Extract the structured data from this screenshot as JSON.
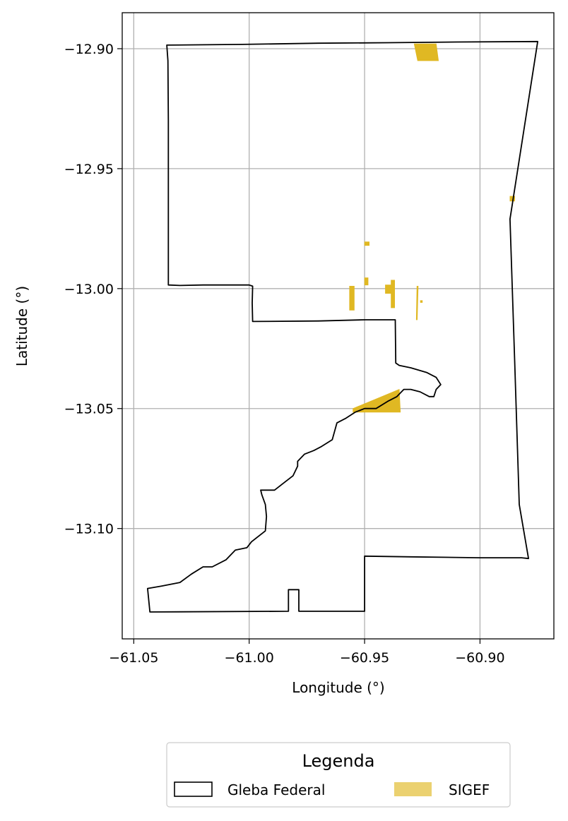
{
  "chart_data": {
    "type": "map",
    "xlabel": "Longitude (°)",
    "ylabel": "Latitude (°)",
    "xlim": [
      -61.055,
      -60.868
    ],
    "ylim": [
      -13.146,
      -12.885
    ],
    "xticks": [
      -61.05,
      -61.0,
      -60.95,
      -60.9
    ],
    "xtick_labels": [
      "−61.05",
      "−61.00",
      "−60.95",
      "−60.90"
    ],
    "yticks": [
      -12.9,
      -12.95,
      -13.0,
      -13.05,
      -13.1
    ],
    "ytick_labels": [
      "−12.90",
      "−12.95",
      "−13.00",
      "−13.05",
      "−13.10"
    ],
    "grid": true,
    "colors": {
      "gleba_edge": "#000000",
      "sigef_fill": "#e0b823",
      "grid": "#b0b0b0"
    },
    "gleba_federal": [
      [
        -61.0357,
        -12.8985
      ],
      [
        -61.003,
        -12.8982
      ],
      [
        -60.97,
        -12.8977
      ],
      [
        -60.94,
        -12.8975
      ],
      [
        -60.91,
        -12.8972
      ],
      [
        -60.875,
        -12.897
      ],
      [
        -60.887,
        -12.971
      ],
      [
        -60.885,
        -13.03
      ],
      [
        -60.883,
        -13.09
      ],
      [
        -60.879,
        -13.1125
      ],
      [
        -60.882,
        -13.1122
      ],
      [
        -60.9,
        -13.1122
      ],
      [
        -60.93,
        -13.1118
      ],
      [
        -60.95,
        -13.1115
      ],
      [
        -60.95,
        -13.1345
      ],
      [
        -60.9785,
        -13.1345
      ],
      [
        -60.9785,
        -13.1255
      ],
      [
        -60.983,
        -13.1255
      ],
      [
        -60.983,
        -13.1345
      ],
      [
        -61.043,
        -13.1348
      ],
      [
        -61.044,
        -13.125
      ],
      [
        -61.038,
        -13.124
      ],
      [
        -61.03,
        -13.1225
      ],
      [
        -61.025,
        -13.119
      ],
      [
        -61.02,
        -13.116
      ],
      [
        -61.016,
        -13.116
      ],
      [
        -61.01,
        -13.113
      ],
      [
        -61.006,
        -13.109
      ],
      [
        -61.001,
        -13.108
      ],
      [
        -60.999,
        -13.1055
      ],
      [
        -60.993,
        -13.101
      ],
      [
        -60.9925,
        -13.095
      ],
      [
        -60.993,
        -13.09
      ],
      [
        -60.9945,
        -13.086
      ],
      [
        -60.995,
        -13.084
      ],
      [
        -60.989,
        -13.084
      ],
      [
        -60.985,
        -13.081
      ],
      [
        -60.981,
        -13.078
      ],
      [
        -60.979,
        -13.074
      ],
      [
        -60.979,
        -13.072
      ],
      [
        -60.976,
        -13.069
      ],
      [
        -60.972,
        -13.0675
      ],
      [
        -60.969,
        -13.066
      ],
      [
        -60.964,
        -13.063
      ],
      [
        -60.962,
        -13.056
      ],
      [
        -60.958,
        -13.054
      ],
      [
        -60.954,
        -13.0515
      ],
      [
        -60.95,
        -13.05
      ],
      [
        -60.945,
        -13.05
      ],
      [
        -60.94,
        -13.047
      ],
      [
        -60.936,
        -13.045
      ],
      [
        -60.933,
        -13.042
      ],
      [
        -60.93,
        -13.042
      ],
      [
        -60.926,
        -13.043
      ],
      [
        -60.922,
        -13.045
      ],
      [
        -60.92,
        -13.045
      ],
      [
        -60.919,
        -13.042
      ],
      [
        -60.917,
        -13.04
      ],
      [
        -60.919,
        -13.037
      ],
      [
        -60.923,
        -13.035
      ],
      [
        -60.93,
        -13.033
      ],
      [
        -60.935,
        -13.032
      ],
      [
        -60.9365,
        -13.031
      ],
      [
        -60.9367,
        -13.013
      ],
      [
        -60.95,
        -13.013
      ],
      [
        -60.97,
        -13.0135
      ],
      [
        -60.9985,
        -13.0137
      ],
      [
        -60.9987,
        -13.006
      ],
      [
        -60.9985,
        -12.999
      ],
      [
        -61.0,
        -12.9985
      ],
      [
        -61.02,
        -12.9985
      ],
      [
        -61.03,
        -12.9987
      ],
      [
        -61.035,
        -12.9985
      ],
      [
        -61.035,
        -12.93
      ],
      [
        -61.0352,
        -12.905
      ],
      [
        -61.0357,
        -12.8985
      ]
    ],
    "sigef": [
      [
        [
          -60.9285,
          -12.898
        ],
        [
          -60.919,
          -12.898
        ],
        [
          -60.918,
          -12.905
        ],
        [
          -60.927,
          -12.905
        ]
      ],
      [
        [
          -60.887,
          -12.9615
        ],
        [
          -60.885,
          -12.9615
        ],
        [
          -60.885,
          -12.9635
        ],
        [
          -60.887,
          -12.9635
        ]
      ],
      [
        [
          -60.95,
          -12.9805
        ],
        [
          -60.948,
          -12.9805
        ],
        [
          -60.948,
          -12.982
        ],
        [
          -60.95,
          -12.982
        ]
      ],
      [
        [
          -60.95,
          -12.9955
        ],
        [
          -60.9485,
          -12.9955
        ],
        [
          -60.9485,
          -12.9985
        ],
        [
          -60.95,
          -12.9985
        ]
      ],
      [
        [
          -60.9565,
          -12.999
        ],
        [
          -60.9545,
          -12.999
        ],
        [
          -60.9545,
          -13.009
        ],
        [
          -60.9565,
          -13.009
        ]
      ],
      [
        [
          -60.941,
          -12.9985
        ],
        [
          -60.9375,
          -12.9985
        ],
        [
          -60.9375,
          -13.002
        ],
        [
          -60.941,
          -13.002
        ]
      ],
      [
        [
          -60.9385,
          -12.9965
        ],
        [
          -60.937,
          -12.9965
        ],
        [
          -60.937,
          -13.008
        ],
        [
          -60.9385,
          -13.008
        ]
      ],
      [
        [
          -60.9273,
          -12.999
        ],
        [
          -60.9268,
          -12.999
        ],
        [
          -60.9272,
          -13.013
        ],
        [
          -60.9276,
          -13.013
        ]
      ],
      [
        [
          -60.9258,
          -13.005
        ],
        [
          -60.925,
          -13.005
        ],
        [
          -60.925,
          -13.0058
        ],
        [
          -60.9258,
          -13.0058
        ]
      ],
      [
        [
          -60.955,
          -13.05
        ],
        [
          -60.935,
          -13.042
        ],
        [
          -60.9345,
          -13.0515
        ],
        [
          -60.955,
          -13.0515
        ]
      ]
    ]
  },
  "legend": {
    "title": "Legenda",
    "items": [
      {
        "label": "Gleba Federal",
        "style": "outline",
        "color": "#000000"
      },
      {
        "label": "SIGEF",
        "style": "fill",
        "color": "#e0b823"
      }
    ]
  }
}
